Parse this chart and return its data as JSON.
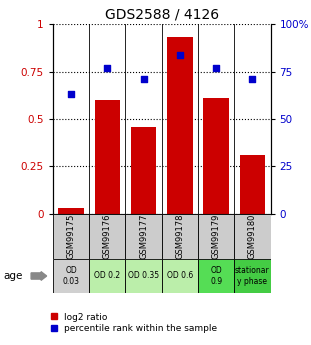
{
  "title": "GDS2588 / 4126",
  "samples": [
    "GSM99175",
    "GSM99176",
    "GSM99177",
    "GSM99178",
    "GSM99179",
    "GSM99180"
  ],
  "log2_ratio": [
    0.03,
    0.6,
    0.46,
    0.93,
    0.61,
    0.31
  ],
  "percentile_rank": [
    0.63,
    0.77,
    0.71,
    0.84,
    0.77,
    0.71
  ],
  "bar_color": "#cc0000",
  "dot_color": "#0000cc",
  "ylim": [
    0,
    1.0
  ],
  "yticks": [
    0,
    0.25,
    0.5,
    0.75,
    1.0
  ],
  "ytick_labels_left": [
    "0",
    "0.25",
    "0.5",
    "0.75",
    "1"
  ],
  "ytick_labels_right": [
    "0",
    "25",
    "50",
    "75",
    "100%"
  ],
  "age_labels": [
    "OD\n0.03",
    "OD 0.2",
    "OD 0.35",
    "OD 0.6",
    "OD\n0.9",
    "stationar\ny phase"
  ],
  "age_colors": [
    "#d0d0d0",
    "#bbeeaa",
    "#bbeeaa",
    "#bbeeaa",
    "#55dd55",
    "#44cc44"
  ],
  "sample_box_color": "#cccccc",
  "legend_label_red": "log2 ratio",
  "legend_label_blue": "percentile rank within the sample",
  "age_text": "age"
}
